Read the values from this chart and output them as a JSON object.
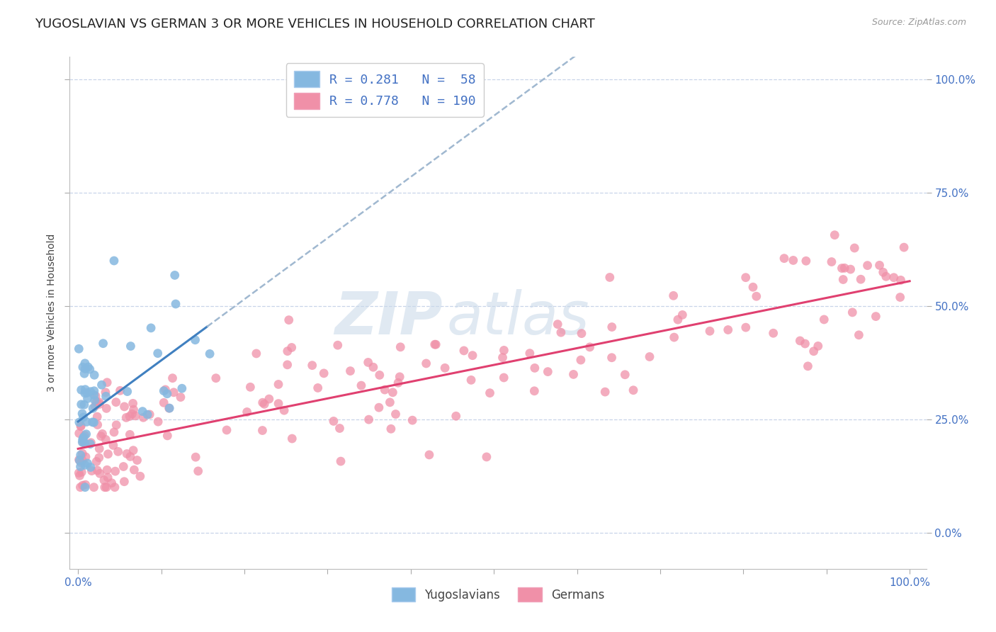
{
  "title": "YUGOSLAVIAN VS GERMAN 3 OR MORE VEHICLES IN HOUSEHOLD CORRELATION CHART",
  "source_text": "Source: ZipAtlas.com",
  "ylabel": "3 or more Vehicles in Household",
  "watermark_zip": "ZIP",
  "watermark_atlas": "atlas",
  "xlim": [
    -0.01,
    1.02
  ],
  "ylim": [
    -0.08,
    1.05
  ],
  "R_yug": 0.281,
  "N_yug": 58,
  "R_ger": 0.778,
  "N_ger": 190,
  "scatter_color_yug": "#85b8e0",
  "scatter_color_ger": "#f090a8",
  "trendline_color_yug": "#4080c0",
  "trendline_color_ger": "#e04070",
  "grid_color": "#c8d4e8",
  "background_color": "#ffffff",
  "title_fontsize": 13,
  "legend_fontsize": 13,
  "watermark_fontsize": 60,
  "tick_color": "#4472c4",
  "tick_fontsize": 11,
  "y_ticks": [
    0.0,
    0.25,
    0.5,
    0.75,
    1.0
  ],
  "y_tick_labels": [
    "0.0%",
    "25.0%",
    "50.0%",
    "75.0%",
    "100.0%"
  ]
}
